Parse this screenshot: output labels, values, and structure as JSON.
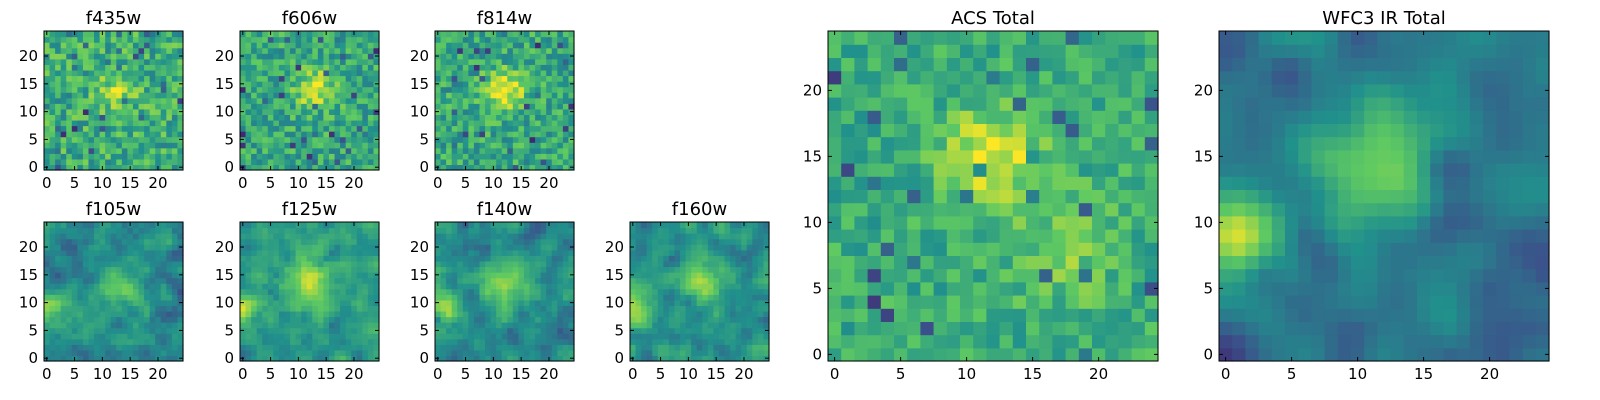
{
  "figure": {
    "colormap": "viridis",
    "palette": [
      "#440154",
      "#3b528b",
      "#21918c",
      "#5ec962",
      "#fde725"
    ]
  },
  "chart_data": [
    {
      "id": "f435w",
      "type": "heatmap",
      "title": "f435w",
      "grid_size": 25,
      "xlim": [
        -0.5,
        24.5
      ],
      "ylim": [
        -0.5,
        24.5
      ],
      "xticks": [
        "0",
        "5",
        "10",
        "15",
        "20"
      ],
      "yticks": [
        "0",
        "5",
        "10",
        "15",
        "20"
      ],
      "description": "noisy image, faint central source",
      "seed": 11,
      "noise": 0.55,
      "smooth": 0,
      "sources": [
        {
          "x": 13,
          "y": 14,
          "amp": 0.25,
          "sigma": 2.5
        }
      ],
      "base": 0.62
    },
    {
      "id": "f606w",
      "type": "heatmap",
      "title": "f606w",
      "grid_size": 25,
      "xlim": [
        -0.5,
        24.5
      ],
      "ylim": [
        -0.5,
        24.5
      ],
      "xticks": [
        "0",
        "5",
        "10",
        "15",
        "20"
      ],
      "yticks": [
        "0",
        "5",
        "10",
        "15",
        "20"
      ],
      "seed": 23,
      "noise": 0.5,
      "smooth": 0,
      "sources": [
        {
          "x": 13,
          "y": 14,
          "amp": 0.35,
          "sigma": 2.5
        }
      ],
      "base": 0.6
    },
    {
      "id": "f814w",
      "type": "heatmap",
      "title": "f814w",
      "grid_size": 25,
      "xlim": [
        -0.5,
        24.5
      ],
      "ylim": [
        -0.5,
        24.5
      ],
      "xticks": [
        "0",
        "5",
        "10",
        "15",
        "20"
      ],
      "yticks": [
        "0",
        "5",
        "10",
        "15",
        "20"
      ],
      "seed": 37,
      "noise": 0.5,
      "smooth": 0,
      "sources": [
        {
          "x": 12,
          "y": 14,
          "amp": 0.4,
          "sigma": 2.5
        }
      ],
      "base": 0.6
    },
    {
      "id": "acs_total",
      "type": "heatmap",
      "title": "ACS Total",
      "grid_size": 25,
      "xlim": [
        -0.5,
        24.5
      ],
      "ylim": [
        -0.5,
        24.5
      ],
      "xticks": [
        "0",
        "5",
        "10",
        "15",
        "20"
      ],
      "yticks": [
        "0",
        "5",
        "10",
        "15",
        "20"
      ],
      "seed": 51,
      "noise": 0.38,
      "smooth": 0,
      "sources": [
        {
          "x": 12,
          "y": 15,
          "amp": 0.35,
          "sigma": 2.5
        },
        {
          "x": 17,
          "y": 8,
          "amp": 0.15,
          "sigma": 3
        }
      ],
      "base": 0.62
    },
    {
      "id": "f105w",
      "type": "heatmap",
      "title": "f105w",
      "grid_size": 25,
      "xlim": [
        -0.5,
        24.5
      ],
      "ylim": [
        -0.5,
        24.5
      ],
      "xticks": [
        "0",
        "5",
        "10",
        "15",
        "20"
      ],
      "yticks": [
        "0",
        "5",
        "10",
        "15",
        "20"
      ],
      "seed": 67,
      "noise": 0.45,
      "smooth": 1,
      "sources": [
        {
          "x": 13,
          "y": 12,
          "amp": 0.3,
          "sigma": 3
        },
        {
          "x": 0,
          "y": 9,
          "amp": 0.35,
          "sigma": 2.5
        }
      ],
      "base": 0.5
    },
    {
      "id": "f125w",
      "type": "heatmap",
      "title": "f125w",
      "grid_size": 25,
      "xlim": [
        -0.5,
        24.5
      ],
      "ylim": [
        -0.5,
        24.5
      ],
      "xticks": [
        "0",
        "5",
        "10",
        "15",
        "20"
      ],
      "yticks": [
        "0",
        "5",
        "10",
        "15",
        "20"
      ],
      "seed": 79,
      "noise": 0.45,
      "smooth": 1,
      "sources": [
        {
          "x": 12,
          "y": 14,
          "amp": 0.35,
          "sigma": 3.5
        },
        {
          "x": 0,
          "y": 9,
          "amp": 0.3,
          "sigma": 2.5
        }
      ],
      "base": 0.55
    },
    {
      "id": "f140w",
      "type": "heatmap",
      "title": "f140w",
      "grid_size": 25,
      "xlim": [
        -0.5,
        24.5
      ],
      "ylim": [
        -0.5,
        24.5
      ],
      "xticks": [
        "0",
        "5",
        "10",
        "15",
        "20"
      ],
      "yticks": [
        "0",
        "5",
        "10",
        "15",
        "20"
      ],
      "seed": 91,
      "noise": 0.45,
      "smooth": 1,
      "sources": [
        {
          "x": 12,
          "y": 13,
          "amp": 0.35,
          "sigma": 3
        },
        {
          "x": 1,
          "y": 9,
          "amp": 0.3,
          "sigma": 2.5
        }
      ],
      "base": 0.5
    },
    {
      "id": "f160w",
      "type": "heatmap",
      "title": "f160w",
      "grid_size": 25,
      "xlim": [
        -0.5,
        24.5
      ],
      "ylim": [
        -0.5,
        24.5
      ],
      "xticks": [
        "0",
        "5",
        "10",
        "15",
        "20"
      ],
      "yticks": [
        "0",
        "5",
        "10",
        "15",
        "20"
      ],
      "seed": 103,
      "noise": 0.45,
      "smooth": 1,
      "sources": [
        {
          "x": 12,
          "y": 14,
          "amp": 0.35,
          "sigma": 3
        },
        {
          "x": 0,
          "y": 9,
          "amp": 0.35,
          "sigma": 2.5
        }
      ],
      "base": 0.5
    },
    {
      "id": "wfc3_ir_total",
      "type": "heatmap",
      "title": "WFC3 IR Total",
      "grid_size": 25,
      "xlim": [
        -0.5,
        24.5
      ],
      "ylim": [
        -0.5,
        24.5
      ],
      "xticks": [
        "0",
        "5",
        "10",
        "15",
        "20"
      ],
      "yticks": [
        "0",
        "5",
        "10",
        "15",
        "20"
      ],
      "seed": 131,
      "noise": 0.3,
      "smooth": 2,
      "sources": [
        {
          "x": 12,
          "y": 14,
          "amp": 0.4,
          "sigma": 3.5
        },
        {
          "x": 1,
          "y": 9,
          "amp": 0.5,
          "sigma": 2
        }
      ],
      "base": 0.42
    }
  ]
}
